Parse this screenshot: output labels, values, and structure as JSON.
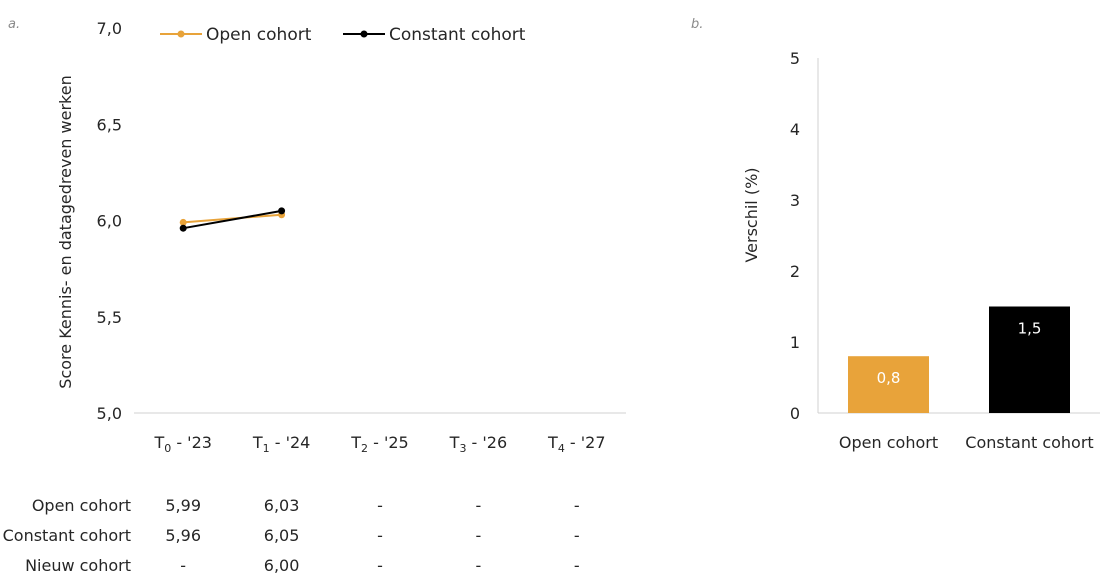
{
  "colors": {
    "open": "#E8A33A",
    "constant": "#000000",
    "axis": "#d0d0d0"
  },
  "chart_data": [
    {
      "type": "line",
      "panel_label": "a.",
      "ylabel": "Score Kennis- en datagedreven werken",
      "ylim": [
        5.0,
        7.0
      ],
      "yticks": [
        "5,0",
        "5,5",
        "6,0",
        "6,5",
        "7,0"
      ],
      "ytick_values": [
        5.0,
        5.5,
        6.0,
        6.5,
        7.0
      ],
      "categories": [
        {
          "base": "T",
          "sub": "0",
          "rest": " - '23"
        },
        {
          "base": "T",
          "sub": "1",
          "rest": " - '24"
        },
        {
          "base": "T",
          "sub": "2",
          "rest": " - '25"
        },
        {
          "base": "T",
          "sub": "3",
          "rest": " - '26"
        },
        {
          "base": "T",
          "sub": "4",
          "rest": " - '27"
        }
      ],
      "legend_position": "top",
      "series": [
        {
          "name": "Open cohort",
          "color": "#E8A33A",
          "values": [
            5.99,
            6.03,
            null,
            null,
            null
          ]
        },
        {
          "name": "Constant cohort",
          "color": "#000000",
          "values": [
            5.96,
            6.05,
            null,
            null,
            null
          ]
        }
      ],
      "table": {
        "rows": [
          {
            "label": "Open cohort",
            "cells": [
              "5,99",
              "6,03",
              "-",
              "-",
              "-"
            ]
          },
          {
            "label": "Constant cohort",
            "cells": [
              "5,96",
              "6,05",
              "-",
              "-",
              "-"
            ]
          },
          {
            "label": "Nieuw cohort",
            "cells": [
              "-",
              "6,00",
              "-",
              "-",
              "-"
            ]
          }
        ]
      }
    },
    {
      "type": "bar",
      "panel_label": "b.",
      "ylabel": "Verschil (%)",
      "ylim": [
        0,
        5
      ],
      "yticks": [
        "0",
        "1",
        "2",
        "3",
        "4",
        "5"
      ],
      "ytick_values": [
        0,
        1,
        2,
        3,
        4,
        5
      ],
      "categories": [
        "Open cohort",
        "Constant cohort"
      ],
      "values": [
        0.8,
        1.5
      ],
      "value_labels": [
        "0,8",
        "1,5"
      ],
      "bar_colors": [
        "#E8A33A",
        "#000000"
      ]
    }
  ]
}
